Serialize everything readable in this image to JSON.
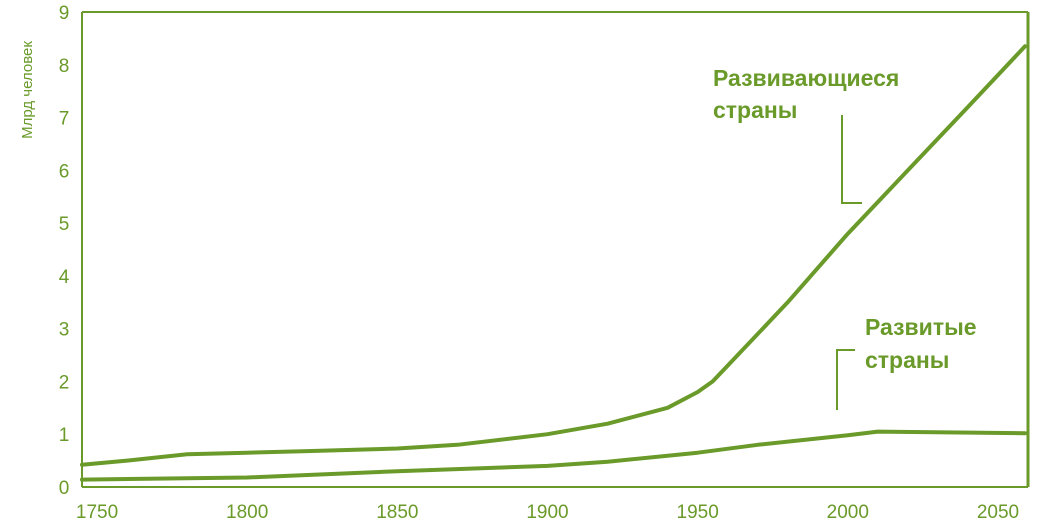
{
  "chart_data": {
    "type": "line",
    "ylabel": "Млрд человек",
    "xlabel": "",
    "xlim": [
      1745,
      2060
    ],
    "ylim": [
      0,
      9
    ],
    "x_ticks": [
      "1750",
      "1800",
      "1850",
      "1900",
      "1950",
      "2000",
      "2050"
    ],
    "y_ticks": [
      "0",
      "1",
      "2",
      "3",
      "4",
      "5",
      "6",
      "7",
      "8",
      "9"
    ],
    "grid": false,
    "series": [
      {
        "name": "Развивающиеся страны",
        "label_lines": [
          "Развивающиеся",
          "страны"
        ],
        "x": [
          1745,
          1760,
          1780,
          1800,
          1820,
          1850,
          1870,
          1900,
          1920,
          1940,
          1950,
          1955,
          1960,
          1980,
          2000,
          2020,
          2040,
          2059
        ],
        "values": [
          0.42,
          0.5,
          0.62,
          0.65,
          0.68,
          0.73,
          0.8,
          1.0,
          1.2,
          1.5,
          1.8,
          2.0,
          2.3,
          3.5,
          4.8,
          6.0,
          7.2,
          8.35
        ]
      },
      {
        "name": "Развитые страны",
        "label_lines": [
          "Развитые",
          "страны"
        ],
        "x": [
          1745,
          1800,
          1850,
          1900,
          1920,
          1950,
          1970,
          2000,
          2010,
          2059
        ],
        "values": [
          0.14,
          0.18,
          0.3,
          0.4,
          0.48,
          0.65,
          0.8,
          0.98,
          1.05,
          1.02
        ]
      }
    ],
    "colors": {
      "line": "#6a9a2a",
      "text": "#6a9a2a"
    }
  }
}
